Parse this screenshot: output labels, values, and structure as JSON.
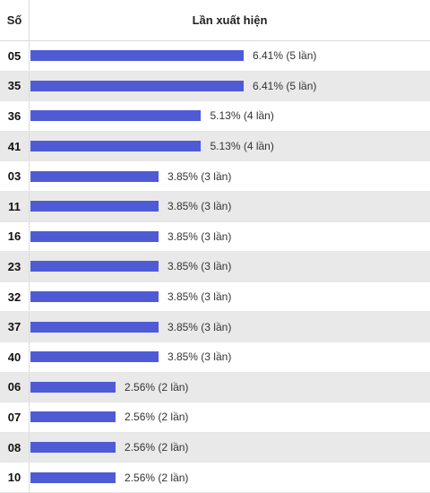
{
  "header": {
    "number_label": "Số",
    "count_label": "Lần xuất hiện"
  },
  "chart_data": {
    "type": "bar",
    "orientation": "horizontal",
    "xlabel": "Lần xuất hiện",
    "ylabel": "Số",
    "bar_color": "#4f5bd5",
    "categories": [
      "05",
      "35",
      "36",
      "41",
      "03",
      "11",
      "16",
      "23",
      "32",
      "37",
      "40",
      "06",
      "07",
      "08",
      "10"
    ],
    "values": [
      6.41,
      6.41,
      5.13,
      5.13,
      3.85,
      3.85,
      3.85,
      3.85,
      3.85,
      3.85,
      3.85,
      2.56,
      2.56,
      2.56,
      2.56
    ],
    "counts": [
      5,
      5,
      4,
      4,
      3,
      3,
      3,
      3,
      3,
      3,
      3,
      2,
      2,
      2,
      2
    ],
    "labels": [
      "6.41% (5 lần)",
      "6.41% (5 lần)",
      "5.13% (4 lần)",
      "5.13% (4 lần)",
      "3.85% (3 lần)",
      "3.85% (3 lần)",
      "3.85% (3 lần)",
      "3.85% (3 lần)",
      "3.85% (3 lần)",
      "3.85% (3 lần)",
      "3.85% (3 lần)",
      "2.56% (2 lần)",
      "2.56% (2 lần)",
      "2.56% (2 lần)",
      "2.56% (2 lần)"
    ]
  }
}
